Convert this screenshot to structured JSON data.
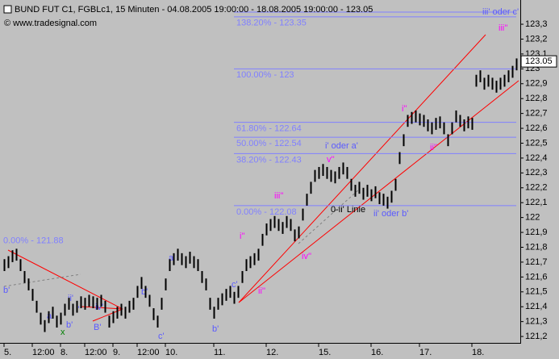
{
  "chart_data": {
    "type": "ohlc",
    "title": "BUND FUT C1, FGBLc1, 15 Minuten - 04.08.2005 19:00:00 - 18.08.2005 19:00:00 - 123.05",
    "subtitle": "© www.tradesignal.com",
    "color": "#000000",
    "categories": [
      "5.",
      null,
      null,
      null,
      null,
      null,
      null,
      "12:00",
      null,
      null,
      null,
      null,
      null,
      null,
      "8.",
      null,
      null,
      null,
      null,
      null,
      "12:00",
      null,
      null,
      null,
      null,
      null,
      null,
      "9.",
      null,
      null,
      null,
      null,
      null,
      "12:00",
      null,
      null,
      null,
      null,
      null,
      null,
      "10.",
      null,
      null,
      null,
      null,
      null,
      null,
      null,
      null,
      null,
      null,
      null,
      "11.",
      null,
      null,
      null,
      null,
      null,
      null,
      null,
      null,
      null,
      null,
      null,
      null,
      "12.",
      null,
      null,
      null,
      null,
      null,
      null,
      null,
      null,
      null,
      null,
      null,
      null,
      "15.",
      null,
      null,
      null,
      null,
      null,
      null,
      null,
      null,
      null,
      null,
      null,
      null,
      "16.",
      null,
      null,
      null,
      null,
      null,
      null,
      null,
      null,
      null,
      null,
      null,
      "17.",
      null,
      null,
      null,
      null,
      null,
      null,
      null,
      null,
      null,
      null,
      null,
      null,
      "18.",
      null,
      null,
      null,
      null,
      null,
      null,
      null,
      null,
      null,
      null,
      null
    ],
    "high": [
      121.72,
      121.74,
      121.78,
      121.79,
      121.72,
      121.64,
      121.59,
      121.52,
      121.44,
      121.36,
      121.31,
      121.37,
      121.4,
      121.34,
      121.36,
      121.42,
      121.46,
      121.42,
      121.44,
      121.47,
      121.46,
      121.48,
      121.47,
      121.46,
      121.48,
      121.44,
      121.34,
      121.37,
      121.4,
      121.42,
      121.4,
      121.44,
      121.46,
      121.54,
      121.6,
      121.54,
      121.48,
      121.39,
      121.34,
      121.46,
      121.59,
      121.72,
      121.76,
      121.79,
      121.76,
      121.74,
      121.77,
      121.74,
      121.72,
      121.64,
      121.59,
      121.46,
      121.4,
      121.46,
      121.49,
      121.52,
      121.54,
      121.5,
      121.54,
      121.64,
      121.72,
      121.74,
      121.76,
      121.79,
      121.89,
      121.96,
      121.99,
      122.01,
      121.99,
      121.97,
      122.01,
      121.99,
      121.92,
      121.94,
      122.06,
      122.16,
      122.24,
      122.32,
      122.34,
      122.36,
      122.34,
      122.32,
      122.31,
      122.34,
      122.37,
      122.34,
      122.26,
      122.22,
      122.24,
      122.2,
      122.22,
      122.19,
      122.21,
      122.17,
      122.16,
      122.14,
      122.18,
      122.26,
      122.44,
      122.56,
      122.69,
      122.71,
      122.72,
      122.7,
      122.69,
      122.66,
      122.64,
      122.67,
      122.68,
      122.64,
      122.56,
      122.64,
      122.72,
      122.69,
      122.66,
      122.68,
      122.67,
      122.96,
      122.99,
      122.94,
      122.96,
      122.94,
      122.92,
      122.94,
      122.96,
      122.99,
      123.02,
      123.07
    ],
    "low": [
      121.64,
      121.66,
      121.7,
      121.71,
      121.64,
      121.56,
      121.51,
      121.44,
      121.36,
      121.28,
      121.23,
      121.29,
      121.32,
      121.26,
      121.28,
      121.34,
      121.38,
      121.34,
      121.36,
      121.39,
      121.38,
      121.4,
      121.39,
      121.38,
      121.4,
      121.36,
      121.26,
      121.29,
      121.32,
      121.34,
      121.32,
      121.36,
      121.38,
      121.46,
      121.52,
      121.46,
      121.4,
      121.31,
      121.26,
      121.38,
      121.51,
      121.64,
      121.68,
      121.71,
      121.68,
      121.66,
      121.69,
      121.66,
      121.64,
      121.56,
      121.51,
      121.38,
      121.32,
      121.38,
      121.41,
      121.44,
      121.46,
      121.42,
      121.46,
      121.56,
      121.64,
      121.66,
      121.68,
      121.71,
      121.81,
      121.88,
      121.91,
      121.93,
      121.91,
      121.89,
      121.93,
      121.91,
      121.84,
      121.86,
      121.98,
      122.08,
      122.16,
      122.24,
      122.26,
      122.28,
      122.26,
      122.24,
      122.23,
      122.26,
      122.29,
      122.26,
      122.18,
      122.14,
      122.16,
      122.12,
      122.14,
      122.11,
      122.13,
      122.09,
      122.08,
      122.06,
      122.1,
      122.18,
      122.36,
      122.48,
      122.61,
      122.63,
      122.64,
      122.62,
      122.61,
      122.58,
      122.56,
      122.59,
      122.6,
      122.56,
      122.48,
      122.56,
      122.64,
      122.61,
      122.58,
      122.6,
      122.59,
      122.88,
      122.91,
      122.86,
      122.88,
      122.86,
      122.84,
      122.86,
      122.88,
      122.91,
      122.94,
      122.99
    ],
    "ylim": [
      121.157,
      123.463
    ],
    "yticks": [
      {
        "value": 121.2,
        "label": "121,2"
      },
      {
        "value": 121.3,
        "label": "121,3"
      },
      {
        "value": 121.4,
        "label": "121,4"
      },
      {
        "value": 121.5,
        "label": "121,5"
      },
      {
        "value": 121.6,
        "label": "121,6"
      },
      {
        "value": 121.7,
        "label": "121,7"
      },
      {
        "value": 121.8,
        "label": "121,8"
      },
      {
        "value": 121.9,
        "label": "121,9"
      },
      122,
      {
        "value": 122.1,
        "label": "122,1"
      },
      {
        "value": 122.2,
        "label": "122,2"
      },
      {
        "value": 122.3,
        "label": "122,3"
      },
      {
        "value": 122.4,
        "label": "122,4"
      },
      {
        "value": 122.5,
        "label": "122,5"
      },
      {
        "value": 122.6,
        "label": "122,6"
      },
      {
        "value": 122.7,
        "label": "122,7"
      },
      {
        "value": 122.8,
        "label": "122,8"
      },
      {
        "value": 122.9,
        "label": "122,9"
      },
      123,
      {
        "value": 123.1,
        "label": "123,1"
      },
      {
        "value": 123.2,
        "label": "123,2"
      },
      {
        "value": 123.3,
        "label": "123,3"
      }
    ],
    "last_price": 123.05,
    "fib_levels": [
      {
        "label": "138.20% - 123.35",
        "value": 123.35
      },
      {
        "label": "100.00% - 123",
        "value": 123
      },
      {
        "label": "61.80% - 122.64",
        "value": 122.64
      },
      {
        "label": "50.00% - 122.54",
        "value": 122.54
      },
      {
        "label": "38.20% - 122.43",
        "value": 122.43
      },
      {
        "label": "0.00% - 122.08",
        "value": 122.08
      }
    ],
    "left_level": {
      "label": "0.00% - 121.88",
      "value": 121.88
    },
    "annotations": [
      "iii' oder c'",
      "iii''",
      "i''",
      "ii''",
      "v''",
      "iii''",
      "i''",
      "ii''",
      "iv''",
      "i' oder a'",
      "ii' oder b'",
      "0-ii' Linie",
      "a'",
      "b'",
      "c'",
      "b'",
      "c'",
      "b'",
      "ii'",
      "iv'",
      "i'",
      "a'",
      "b'",
      "B'",
      "x"
    ]
  }
}
